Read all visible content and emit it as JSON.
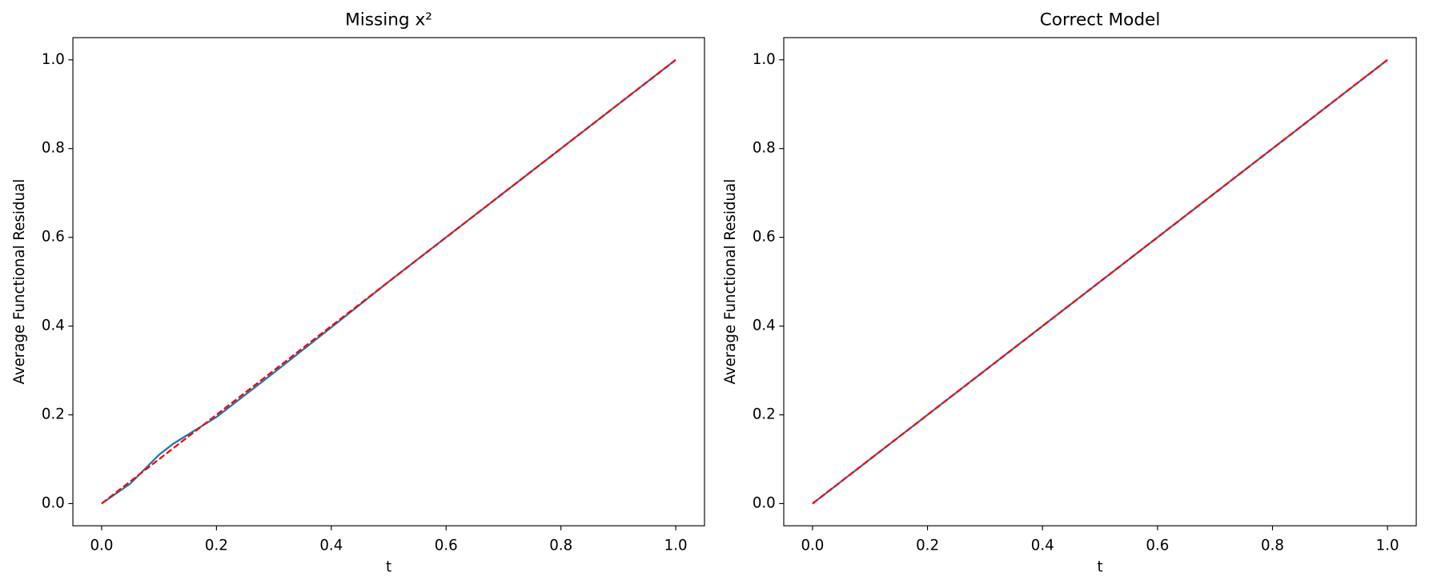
{
  "chart_data": [
    {
      "type": "line",
      "title": "Missing x²",
      "x_label": "t",
      "y_label": "Average Functional Residual",
      "xlim": [
        -0.05,
        1.05
      ],
      "ylim": [
        -0.05,
        1.05
      ],
      "xticks": [
        {
          "value": 0,
          "label": "0.0"
        },
        0.2,
        0.4,
        0.6,
        0.8,
        {
          "value": 1,
          "label": "1.0"
        }
      ],
      "yticks": [
        {
          "value": 0,
          "label": "0.0"
        },
        0.2,
        0.4,
        0.6,
        0.8,
        {
          "value": 1,
          "label": "1.0"
        }
      ],
      "series": [
        {
          "color": "#1f77b4",
          "linestyle": "solid",
          "x": [
            0,
            0.05,
            0.1,
            0.125,
            0.15,
            0.2,
            0.3,
            0.4,
            0.5,
            0.6,
            0.7,
            0.8,
            0.9,
            1
          ],
          "values": [
            0,
            0.045,
            0.11,
            0.135,
            0.155,
            0.195,
            0.295,
            0.397,
            0.5,
            0.6,
            0.7,
            0.8,
            0.9,
            1
          ]
        },
        {
          "color": "#ff0000",
          "linestyle": "dashed",
          "x": [
            0,
            1
          ],
          "values": [
            0,
            1
          ]
        }
      ]
    },
    {
      "type": "line",
      "title": "Correct Model",
      "x_label": "t",
      "y_label": "Average Functional Residual",
      "xlim": [
        -0.05,
        1.05
      ],
      "ylim": [
        -0.05,
        1.05
      ],
      "xticks": [
        {
          "value": 0,
          "label": "0.0"
        },
        0.2,
        0.4,
        0.6,
        0.8,
        {
          "value": 1,
          "label": "1.0"
        }
      ],
      "yticks": [
        {
          "value": 0,
          "label": "0.0"
        },
        0.2,
        0.4,
        0.6,
        0.8,
        {
          "value": 1,
          "label": "1.0"
        }
      ],
      "series": [
        {
          "color": "#1f77b4",
          "linestyle": "solid",
          "x": [
            0,
            0.5,
            1
          ],
          "values": [
            0,
            0.5,
            1
          ]
        },
        {
          "color": "#ff0000",
          "linestyle": "dashed",
          "x": [
            0,
            1
          ],
          "values": [
            0,
            1
          ]
        }
      ]
    }
  ]
}
